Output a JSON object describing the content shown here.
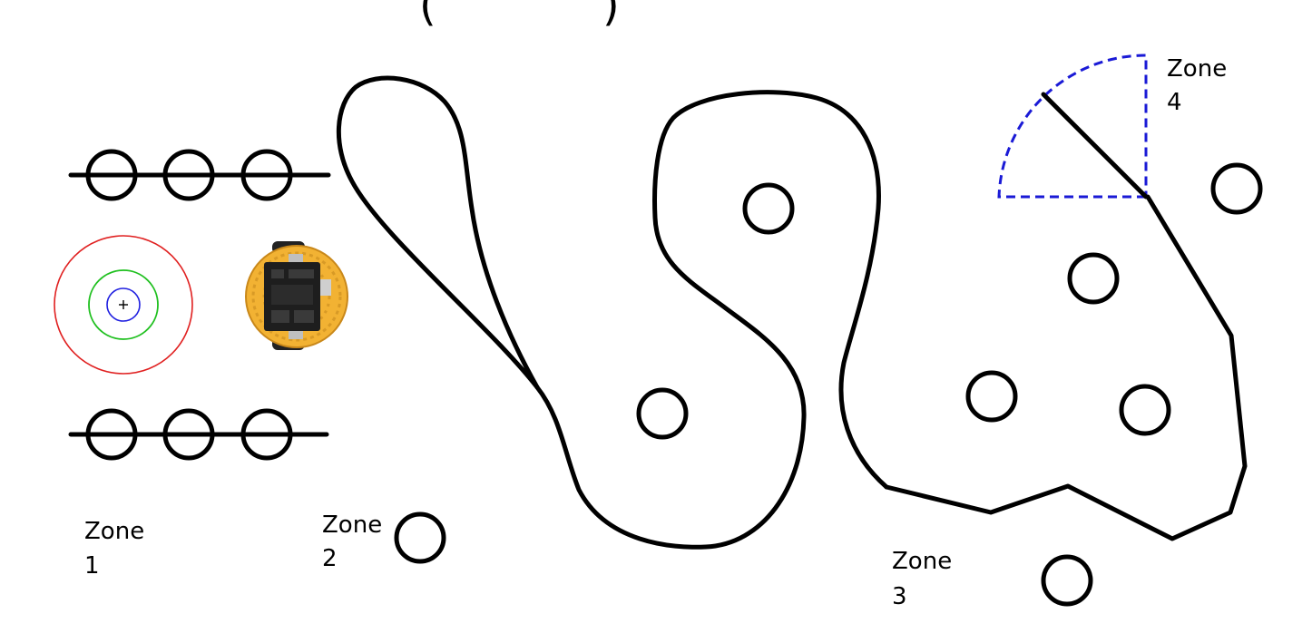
{
  "diagram": {
    "title_fragment_left": "(",
    "title_fragment_right": ")",
    "zones": [
      {
        "id": "zone-1",
        "line1": "Zone",
        "line2": "1"
      },
      {
        "id": "zone-2",
        "line1": "Zone",
        "line2": "2"
      },
      {
        "id": "zone-3",
        "line1": "Zone",
        "line2": "3"
      },
      {
        "id": "zone-4",
        "line1": "Zone",
        "line2": "4"
      }
    ],
    "colors": {
      "outline": "#000000",
      "target_outer": "#e02020",
      "target_middle": "#20c020",
      "target_inner": "#2020e0",
      "sector_dashed": "#1a1ad6",
      "robot_body": "#f2b233",
      "robot_board": "#1e1e1e"
    },
    "icons": {
      "target": "target-crosshair-icon",
      "robot": "robot-icon"
    }
  }
}
